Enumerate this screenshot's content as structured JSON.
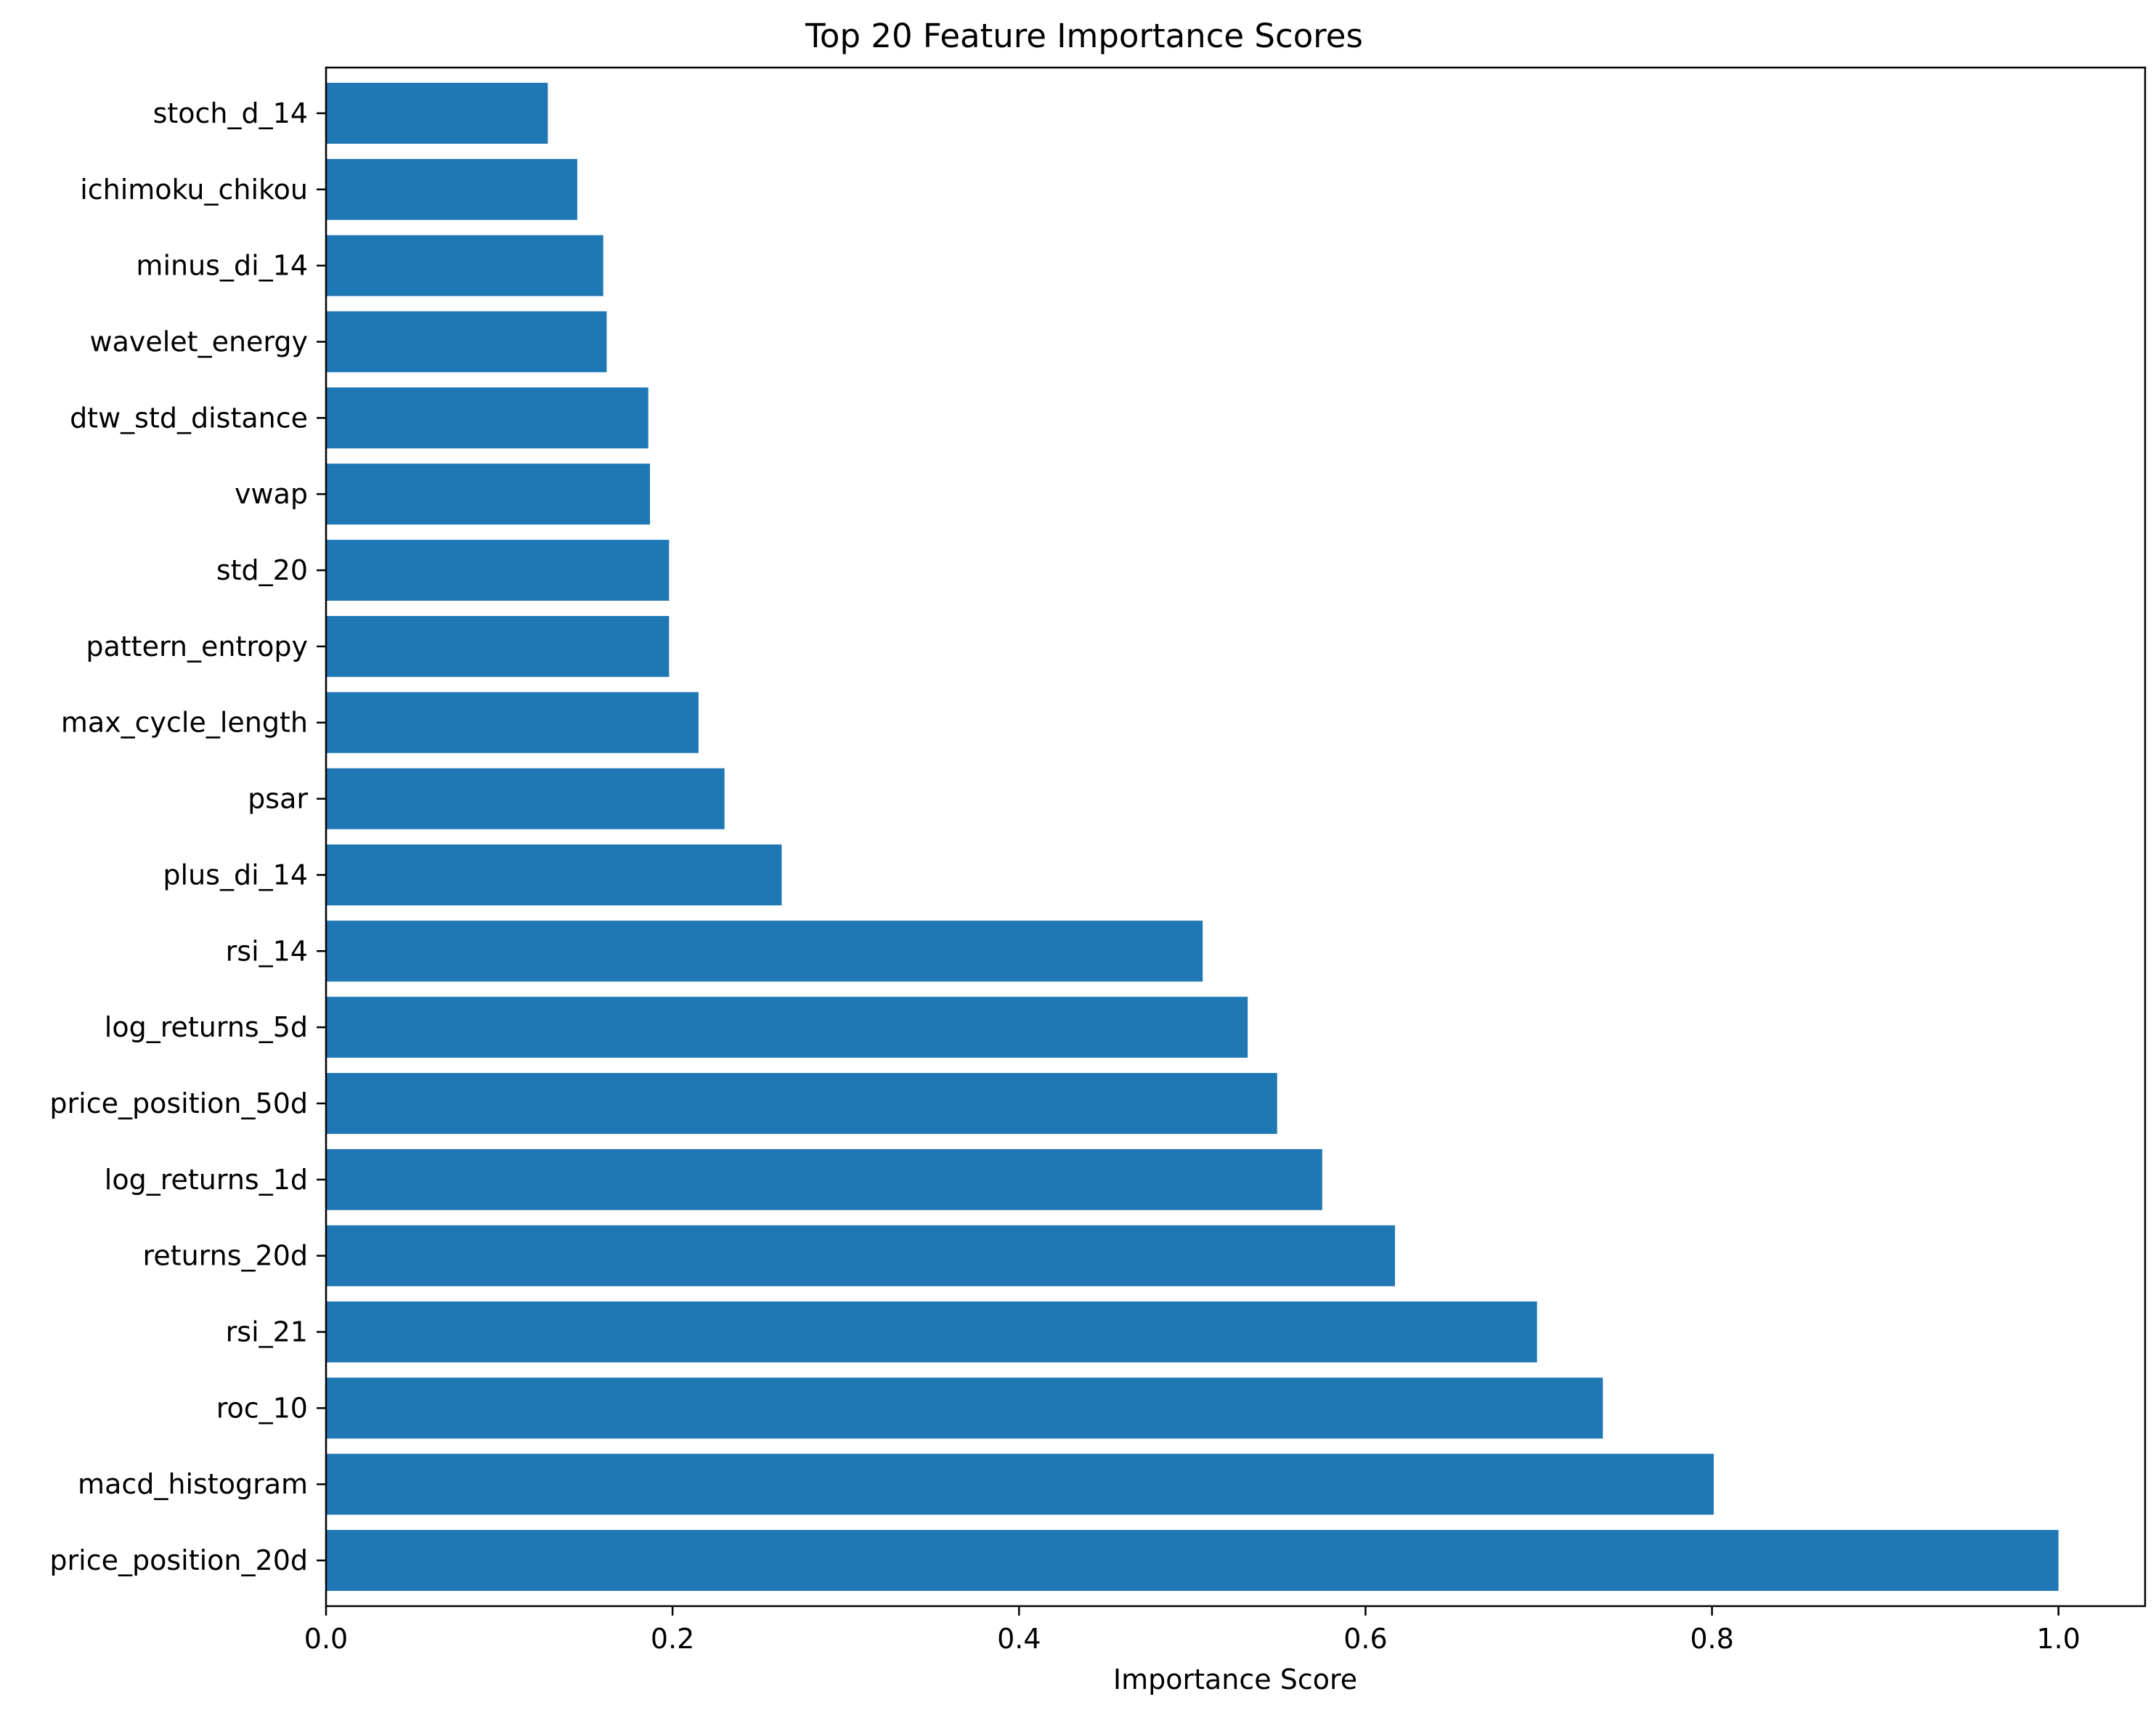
{
  "chart_data": {
    "type": "bar",
    "orientation": "horizontal",
    "title": "Top 20 Feature Importance Scores",
    "xlabel": "Importance Score",
    "ylabel": "",
    "xlim": [
      0,
      1.05
    ],
    "x_ticks": [
      {
        "value": 0.0,
        "label": "0.0"
      },
      {
        "value": 0.2,
        "label": "0.2"
      },
      {
        "value": 0.4,
        "label": "0.4"
      },
      {
        "value": 0.6,
        "label": "0.6"
      },
      {
        "value": 0.8,
        "label": "0.8"
      },
      {
        "value": 1.0,
        "label": "1.0"
      }
    ],
    "grid": false,
    "bar_color": "#1f77b4",
    "categories": [
      "price_position_20d",
      "macd_histogram",
      "roc_10",
      "rsi_21",
      "returns_20d",
      "log_returns_1d",
      "price_position_50d",
      "log_returns_5d",
      "rsi_14",
      "plus_di_14",
      "psar",
      "max_cycle_length",
      "pattern_entropy",
      "std_20",
      "vwap",
      "dtw_std_distance",
      "wavelet_energy",
      "minus_di_14",
      "ichimoku_chikou",
      "stoch_d_14"
    ],
    "values": [
      1.0,
      0.801,
      0.737,
      0.699,
      0.617,
      0.575,
      0.549,
      0.532,
      0.506,
      0.263,
      0.23,
      0.215,
      0.198,
      0.198,
      0.187,
      0.186,
      0.162,
      0.16,
      0.145,
      0.128
    ]
  }
}
